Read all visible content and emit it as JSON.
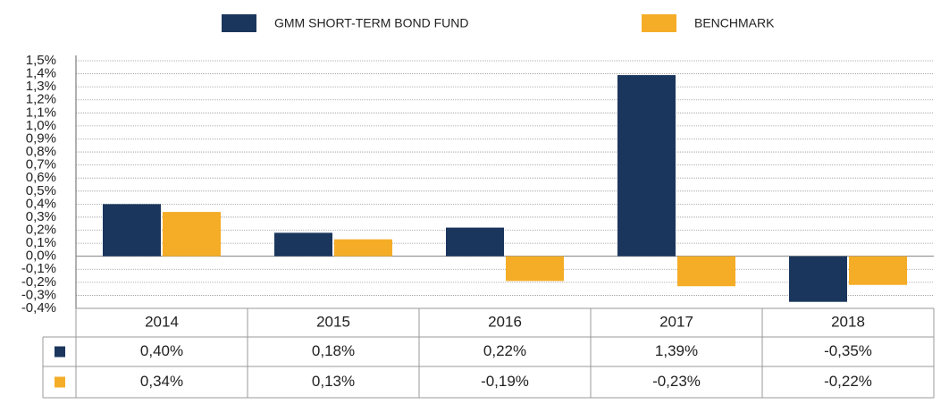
{
  "chart_data": {
    "type": "bar",
    "categories": [
      "2014",
      "2015",
      "2016",
      "2017",
      "2018"
    ],
    "series": [
      {
        "name": "GMM SHORT-TERM BOND FUND",
        "color": "#1b365d",
        "values": [
          0.4,
          0.18,
          0.22,
          1.39,
          -0.35
        ],
        "value_labels": [
          "0,40%",
          "0,18%",
          "0,22%",
          "1,39%",
          "-0,35%"
        ]
      },
      {
        "name": "BENCHMARK",
        "color": "#f5ad27",
        "values": [
          0.34,
          0.13,
          -0.19,
          -0.23,
          -0.22
        ],
        "value_labels": [
          "0,34%",
          "0,13%",
          "-0,19%",
          "-0,23%",
          "-0,22%"
        ]
      }
    ],
    "ylim": [
      -0.4,
      1.5
    ],
    "yticks": [
      {
        "value": 1.5,
        "label": "1,5%"
      },
      {
        "value": 1.4,
        "label": "1,4%"
      },
      {
        "value": 1.3,
        "label": "1,3%"
      },
      {
        "value": 1.2,
        "label": "1,2%"
      },
      {
        "value": 1.1,
        "label": "1,1%"
      },
      {
        "value": 1.0,
        "label": "1,0%"
      },
      {
        "value": 0.9,
        "label": "0,9%"
      },
      {
        "value": 0.8,
        "label": "0,8%"
      },
      {
        "value": 0.7,
        "label": "0,7%"
      },
      {
        "value": 0.6,
        "label": "0,6%"
      },
      {
        "value": 0.5,
        "label": "0,5%"
      },
      {
        "value": 0.4,
        "label": "0,4%"
      },
      {
        "value": 0.3,
        "label": "0,3%"
      },
      {
        "value": 0.2,
        "label": "0,2%"
      },
      {
        "value": 0.1,
        "label": "0,1%"
      },
      {
        "value": 0,
        "label": "0,0%"
      },
      {
        "value": -0.1,
        "label": "-0,1%"
      },
      {
        "value": -0.2,
        "label": "-0,2%"
      },
      {
        "value": -0.3,
        "label": "-0,3%"
      },
      {
        "value": -0.4,
        "label": "-0,4%"
      }
    ],
    "grid": true
  }
}
